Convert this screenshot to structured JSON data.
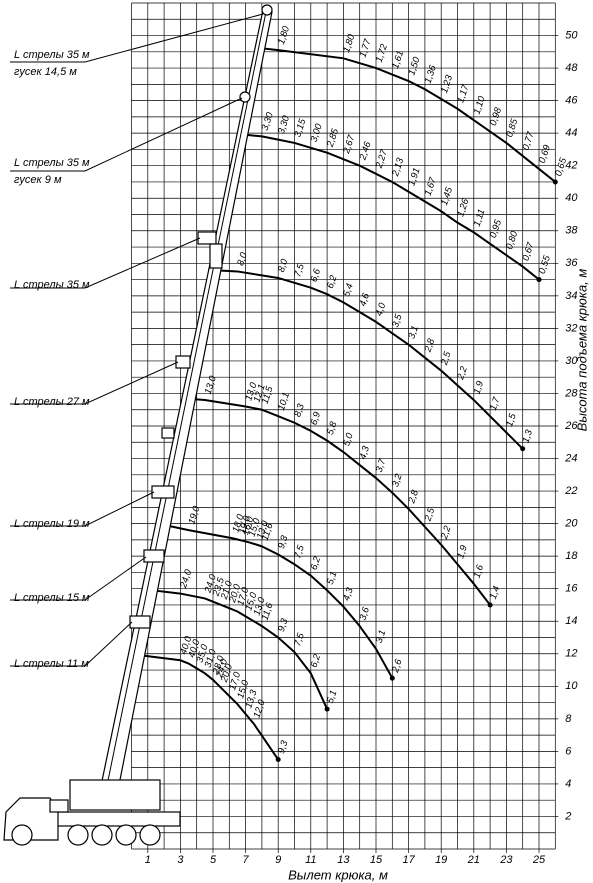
{
  "chart_data": {
    "type": "line",
    "x_label": "Вылет крюка, м",
    "y_label": "Высота подъема крюка, м",
    "xlim": [
      0,
      26
    ],
    "ylim": [
      0,
      52
    ],
    "xticks": [
      1,
      3,
      5,
      7,
      9,
      11,
      13,
      15,
      17,
      19,
      21,
      23,
      25
    ],
    "yticks": [
      2,
      4,
      6,
      8,
      10,
      12,
      14,
      16,
      18,
      20,
      22,
      24,
      26,
      28,
      30,
      32,
      34,
      36,
      38,
      40,
      42,
      44,
      46,
      48,
      50
    ],
    "grid": true,
    "color": "#000000",
    "series": [
      {
        "name": "L стрелы 35 м",
        "jib": "гусек 14,5 м",
        "x": [
          8.1,
          9,
          13,
          14,
          15,
          16,
          17,
          18,
          19,
          20,
          21,
          22,
          23,
          24,
          25,
          26
        ],
        "values": [
          49.2,
          49.1,
          48.6,
          48.3,
          48.0,
          47.6,
          47.2,
          46.7,
          46.1,
          45.5,
          44.8,
          44.1,
          43.4,
          42.6,
          41.8,
          41.0
        ],
        "loads": [
          null,
          "1,80",
          "1,80",
          "1,77",
          "1,72",
          "1,61",
          "1,50",
          "1,36",
          "1,23",
          "1,17",
          "1,10",
          "0,98",
          "0,85",
          "0,77",
          "0,69",
          "0,65"
        ]
      },
      {
        "name": "L стрелы 35 м",
        "jib": "гусек 9 м",
        "x": [
          7,
          8,
          9,
          10,
          11,
          12,
          13,
          14,
          15,
          16,
          17,
          18,
          19,
          20,
          21,
          22,
          23,
          24,
          25
        ],
        "values": [
          43.9,
          43.8,
          43.6,
          43.4,
          43.1,
          42.8,
          42.4,
          42.0,
          41.5,
          41.0,
          40.4,
          39.8,
          39.2,
          38.5,
          37.9,
          37.2,
          36.5,
          35.8,
          35.0
        ],
        "loads": [
          null,
          "3,30",
          "3,30",
          "3,15",
          "3,00",
          "2,85",
          "2,67",
          "2,46",
          "2,27",
          "2,13",
          "1,91",
          "1,67",
          "1,45",
          "1,26",
          "1,11",
          "0,95",
          "0,80",
          "0,67",
          "0,55"
        ]
      },
      {
        "name": "L стрелы 35 м",
        "x": [
          4.7,
          6.5,
          9,
          10,
          11,
          12,
          13,
          14,
          15,
          16,
          17,
          18,
          19,
          20,
          21,
          22,
          23,
          24
        ],
        "values": [
          35.6,
          35.5,
          35.1,
          34.8,
          34.5,
          34.1,
          33.6,
          33.0,
          32.4,
          31.7,
          31.0,
          30.2,
          29.4,
          28.5,
          27.6,
          26.6,
          25.6,
          24.6
        ],
        "loads": [
          null,
          "8,0",
          "8,0",
          "7,5",
          "6,6",
          "6,2",
          "5,4",
          "4,6",
          "4,0",
          "3,5",
          "3,1",
          "2,8",
          "2,5",
          "2,2",
          "1,9",
          "1,7",
          "1,5",
          "1,3"
        ]
      },
      {
        "name": "L стрелы 27 м",
        "x": [
          3.2,
          4.5,
          7,
          7.5,
          8,
          9,
          10,
          11,
          12,
          13,
          14,
          15,
          16,
          17,
          18,
          19,
          20,
          21,
          22
        ],
        "values": [
          27.7,
          27.6,
          27.2,
          27.1,
          27.0,
          26.6,
          26.2,
          25.7,
          25.1,
          24.4,
          23.6,
          22.8,
          21.9,
          20.9,
          19.8,
          18.7,
          17.5,
          16.3,
          15.0
        ],
        "loads": [
          null,
          "13,0",
          "13,0",
          "12,1",
          "11,5",
          "10,1",
          "8,3",
          "6,9",
          "5,8",
          "5,0",
          "4,3",
          "3,7",
          "3,2",
          "2,8",
          "2,5",
          "2,2",
          "1,9",
          "1,6",
          "1,4"
        ]
      },
      {
        "name": "L стрелы 19 м",
        "x": [
          2.1,
          3.5,
          6.2,
          6.6,
          6.8,
          7.2,
          7.7,
          8,
          9,
          10,
          11,
          12,
          13,
          14,
          15,
          16
        ],
        "values": [
          19.9,
          19.6,
          19.1,
          19.0,
          18.95,
          18.85,
          18.7,
          18.6,
          18.1,
          17.5,
          16.8,
          15.9,
          14.9,
          13.7,
          12.3,
          10.5
        ],
        "loads": [
          null,
          "19,0",
          "18,0",
          "19,0",
          "16,0",
          "15,0",
          "13,0",
          "11,6",
          "9,3",
          "7,5",
          "6,2",
          "5,1",
          "4,3",
          "3,6",
          "3,1",
          "2,6"
        ]
      },
      {
        "name": "L стрелы 15 м",
        "x": [
          1.3,
          3,
          4.5,
          5,
          5.5,
          6,
          6.5,
          7,
          7.5,
          8,
          9,
          10,
          11,
          12
        ],
        "values": [
          15.9,
          15.7,
          15.4,
          15.2,
          15.0,
          14.8,
          14.6,
          14.3,
          14.0,
          13.7,
          13.0,
          12.1,
          10.8,
          8.6
        ],
        "loads": [
          null,
          "24,0",
          "24,0",
          "23,5",
          "21,0",
          "20,0",
          "17,0",
          "15,0",
          "13,0",
          "11,6",
          "9,3",
          "7,5",
          "6,2",
          "5,1"
        ]
      },
      {
        "name": "L стрелы 11 м",
        "x": [
          0.6,
          3,
          3.5,
          4,
          4.5,
          5,
          5.2,
          5.5,
          6,
          6.5,
          7,
          7.5,
          9
        ],
        "values": [
          11.9,
          11.6,
          11.4,
          11.1,
          10.8,
          10.4,
          10.2,
          9.9,
          9.4,
          8.9,
          8.3,
          7.7,
          5.5
        ],
        "loads": [
          null,
          "40,0",
          "40,0",
          "35,0",
          "31,0",
          "28,0",
          "24,0",
          "20,0",
          "17,0",
          "15,0",
          "13,3",
          "12,0",
          "9,3"
        ]
      }
    ]
  }
}
